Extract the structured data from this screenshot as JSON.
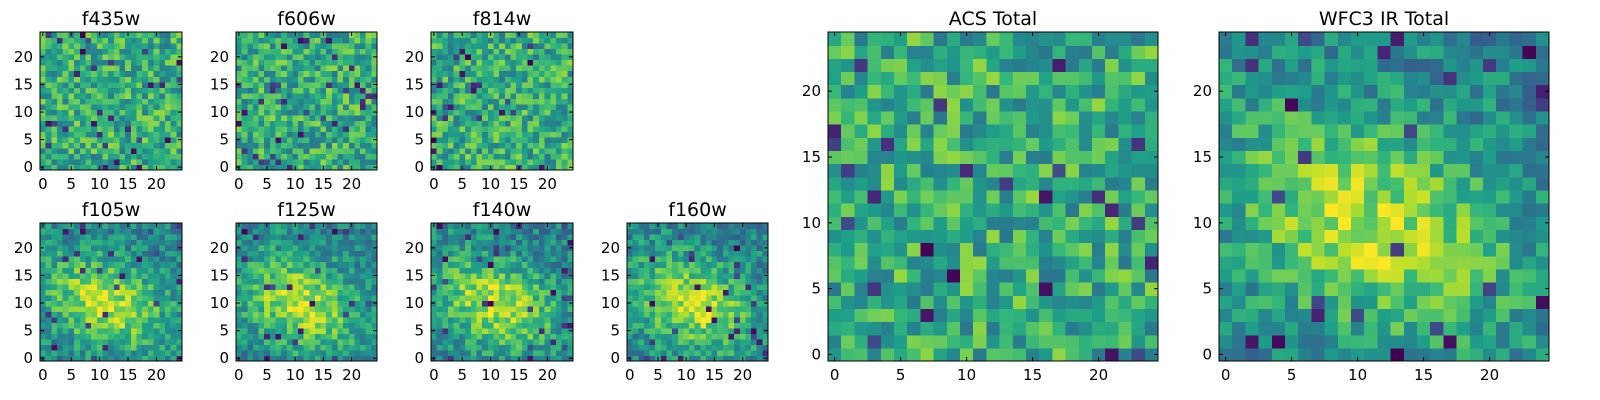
{
  "chart_data": [
    {
      "type": "heatmap",
      "title": "f435w",
      "colormap": "viridis",
      "grid": false,
      "xlim": [
        0,
        24
      ],
      "ylim": [
        0,
        24
      ],
      "xticks": [
        "0",
        "5",
        "10",
        "15",
        "20"
      ],
      "yticks": [
        "0",
        "5",
        "10",
        "15",
        "20"
      ],
      "structure": "noise",
      "seed": 11
    },
    {
      "type": "heatmap",
      "title": "f606w",
      "colormap": "viridis",
      "grid": false,
      "xlim": [
        0,
        24
      ],
      "ylim": [
        0,
        24
      ],
      "xticks": [
        "0",
        "5",
        "10",
        "15",
        "20"
      ],
      "yticks": [
        "0",
        "5",
        "10",
        "15",
        "20"
      ],
      "structure": "noise",
      "seed": 23
    },
    {
      "type": "heatmap",
      "title": "f814w",
      "colormap": "viridis",
      "grid": false,
      "xlim": [
        0,
        24
      ],
      "ylim": [
        0,
        24
      ],
      "xticks": [
        "0",
        "5",
        "10",
        "15",
        "20"
      ],
      "yticks": [
        "0",
        "5",
        "10",
        "15",
        "20"
      ],
      "structure": "noise",
      "seed": 37
    },
    {
      "type": "heatmap",
      "title": "f105w",
      "colormap": "viridis",
      "grid": false,
      "xlim": [
        0,
        24
      ],
      "ylim": [
        0,
        24
      ],
      "xticks": [
        "0",
        "5",
        "10",
        "15",
        "20"
      ],
      "yticks": [
        "0",
        "5",
        "10",
        "15",
        "20"
      ],
      "structure": "source",
      "seed": 41
    },
    {
      "type": "heatmap",
      "title": "f125w",
      "colormap": "viridis",
      "grid": false,
      "xlim": [
        0,
        24
      ],
      "ylim": [
        0,
        24
      ],
      "xticks": [
        "0",
        "5",
        "10",
        "15",
        "20"
      ],
      "yticks": [
        "0",
        "5",
        "10",
        "15",
        "20"
      ],
      "structure": "source",
      "seed": 53
    },
    {
      "type": "heatmap",
      "title": "f140w",
      "colormap": "viridis",
      "grid": false,
      "xlim": [
        0,
        24
      ],
      "ylim": [
        0,
        24
      ],
      "xticks": [
        "0",
        "5",
        "10",
        "15",
        "20"
      ],
      "yticks": [
        "0",
        "5",
        "10",
        "15",
        "20"
      ],
      "structure": "source",
      "seed": 67
    },
    {
      "type": "heatmap",
      "title": "f160w",
      "colormap": "viridis",
      "grid": false,
      "xlim": [
        0,
        24
      ],
      "ylim": [
        0,
        24
      ],
      "xticks": [
        "0",
        "5",
        "10",
        "15",
        "20"
      ],
      "yticks": [
        "0",
        "5",
        "10",
        "15",
        "20"
      ],
      "structure": "source",
      "seed": 79
    },
    {
      "type": "heatmap",
      "title": "ACS Total",
      "colormap": "viridis",
      "grid": false,
      "xlim": [
        0,
        24
      ],
      "ylim": [
        0,
        24
      ],
      "xticks": [
        "0",
        "5",
        "10",
        "15",
        "20"
      ],
      "yticks": [
        "0",
        "5",
        "10",
        "15",
        "20"
      ],
      "structure": "noise",
      "seed": 83
    },
    {
      "type": "heatmap",
      "title": "WFC3 IR Total",
      "colormap": "viridis",
      "grid": false,
      "xlim": [
        0,
        24
      ],
      "ylim": [
        0,
        24
      ],
      "xticks": [
        "0",
        "5",
        "10",
        "15",
        "20"
      ],
      "yticks": [
        "0",
        "5",
        "10",
        "15",
        "20"
      ],
      "structure": "source",
      "seed": 97
    }
  ]
}
